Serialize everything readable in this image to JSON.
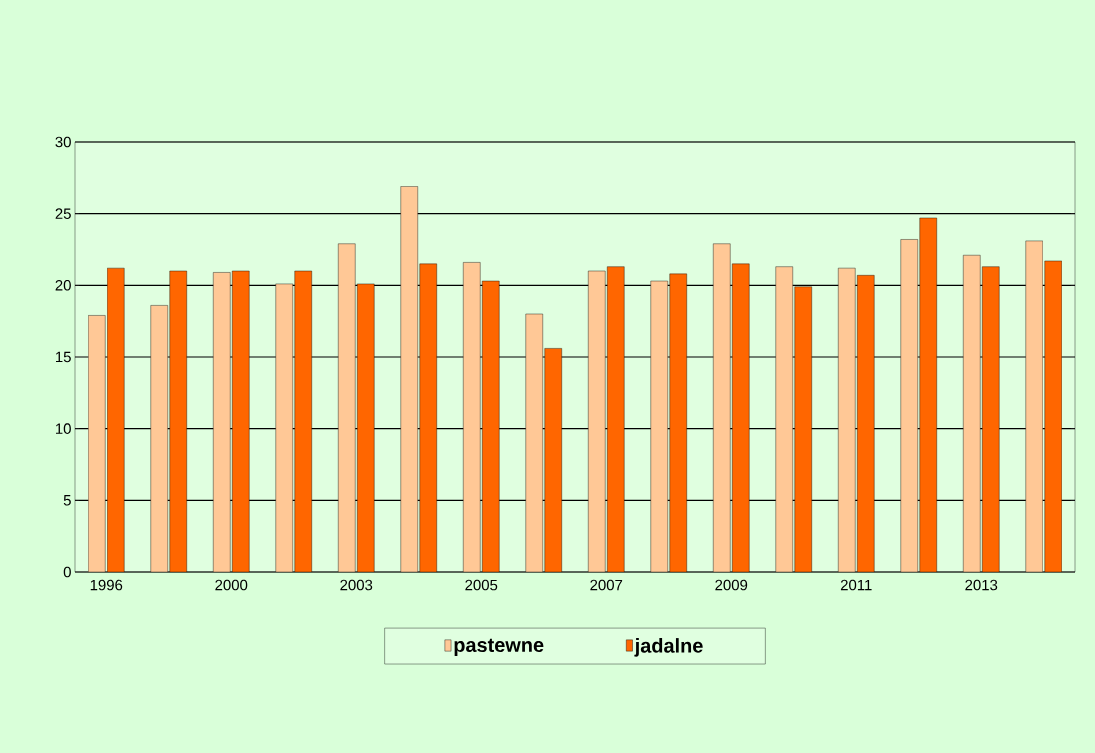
{
  "chart_data": {
    "type": "bar",
    "categories": [
      "1996",
      null,
      "2000",
      null,
      "2003",
      null,
      "2005",
      null,
      "2007",
      null,
      "2009",
      null,
      "2011",
      null,
      "2013",
      null
    ],
    "series": [
      {
        "name": "pastewne",
        "color": "#ffc896",
        "values": [
          17.9,
          18.6,
          20.9,
          20.1,
          22.9,
          26.9,
          21.6,
          18.0,
          21.0,
          20.3,
          22.9,
          21.3,
          21.2,
          23.2,
          22.1,
          23.1
        ]
      },
      {
        "name": "jadalne",
        "color": "#ff6600",
        "values": [
          21.2,
          21.0,
          21.0,
          21.0,
          20.1,
          21.5,
          20.3,
          15.6,
          21.3,
          20.8,
          21.5,
          19.9,
          20.7,
          24.7,
          21.3,
          21.7
        ]
      }
    ],
    "ylim": [
      0,
      30
    ],
    "yticks": [
      0,
      5,
      10,
      15,
      20,
      25,
      30
    ],
    "grid": "y",
    "legend": "bottom"
  }
}
